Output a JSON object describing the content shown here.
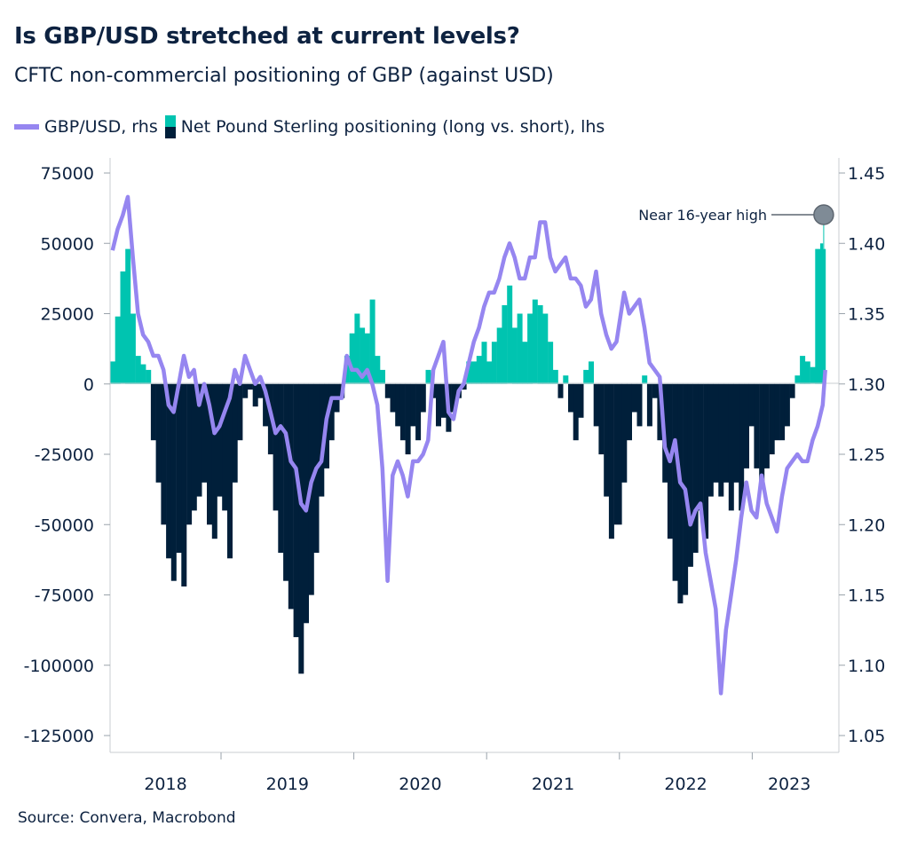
{
  "header": {
    "title": "Is GBP/USD stretched at current levels?",
    "subtitle": "CFTC non-commercial positioning of GBP (against USD)"
  },
  "legend": {
    "line_label": "GBP/USD, rhs",
    "bar_label": "Net Pound Sterling positioning (long vs. short), lhs"
  },
  "source": "Source: Convera, Macrobond",
  "colors": {
    "text": "#0d2240",
    "positive_bar": "#00c4b0",
    "negative_bar": "#001f3a",
    "line": "#9686f0",
    "annotation_marker": "#7f8b96"
  },
  "chart_data": {
    "type": "bar+line",
    "legend_position": "top-left",
    "grid": false,
    "annotation": {
      "text": "Near 16-year high",
      "date": "2023-07-14"
    },
    "x_ticks": [
      "2018",
      "2019",
      "2020",
      "2021",
      "2022",
      "2023"
    ],
    "y_left": {
      "ylim": [
        -125000,
        75000
      ],
      "ticks": [
        "75000",
        "50000",
        "25000",
        "0",
        "-25000",
        "-50000",
        "-75000",
        "-100000",
        "-125000"
      ]
    },
    "y_right": {
      "ylim": [
        1.05,
        1.45
      ],
      "ticks": [
        "1.45",
        "1.40",
        "1.35",
        "1.30",
        "1.25",
        "1.20",
        "1.15",
        "1.10",
        "1.05"
      ]
    },
    "dates": [
      "2018-03-02",
      "2018-03-16",
      "2018-03-30",
      "2018-04-13",
      "2018-04-27",
      "2018-05-11",
      "2018-05-25",
      "2018-06-08",
      "2018-06-22",
      "2018-07-06",
      "2018-07-20",
      "2018-08-03",
      "2018-08-17",
      "2018-08-31",
      "2018-09-14",
      "2018-09-28",
      "2018-10-12",
      "2018-10-26",
      "2018-11-09",
      "2018-11-23",
      "2018-12-07",
      "2018-12-21",
      "2019-01-04",
      "2019-01-18",
      "2019-02-01",
      "2019-02-15",
      "2019-03-01",
      "2019-03-15",
      "2019-03-29",
      "2019-04-12",
      "2019-04-26",
      "2019-05-10",
      "2019-05-24",
      "2019-06-07",
      "2019-06-21",
      "2019-07-05",
      "2019-07-19",
      "2019-08-02",
      "2019-08-16",
      "2019-08-30",
      "2019-09-13",
      "2019-09-27",
      "2019-10-11",
      "2019-10-25",
      "2019-11-08",
      "2019-11-22",
      "2019-12-06",
      "2019-12-20",
      "2020-01-03",
      "2020-01-17",
      "2020-01-31",
      "2020-02-14",
      "2020-02-28",
      "2020-03-13",
      "2020-03-27",
      "2020-04-10",
      "2020-04-24",
      "2020-05-08",
      "2020-05-22",
      "2020-06-05",
      "2020-06-19",
      "2020-07-03",
      "2020-07-17",
      "2020-07-31",
      "2020-08-14",
      "2020-08-28",
      "2020-09-11",
      "2020-09-25",
      "2020-10-09",
      "2020-10-23",
      "2020-11-06",
      "2020-11-20",
      "2020-12-04",
      "2020-12-18",
      "2021-01-01",
      "2021-01-15",
      "2021-01-29",
      "2021-02-12",
      "2021-02-26",
      "2021-03-12",
      "2021-03-26",
      "2021-04-09",
      "2021-04-23",
      "2021-05-07",
      "2021-05-21",
      "2021-06-04",
      "2021-06-18",
      "2021-07-02",
      "2021-07-16",
      "2021-07-30",
      "2021-08-13",
      "2021-08-27",
      "2021-09-10",
      "2021-09-24",
      "2021-10-08",
      "2021-10-22",
      "2021-11-05",
      "2021-11-19",
      "2021-12-03",
      "2021-12-17",
      "2022-01-07",
      "2022-01-21",
      "2022-02-04",
      "2022-02-18",
      "2022-03-04",
      "2022-03-18",
      "2022-04-01",
      "2022-04-15",
      "2022-04-29",
      "2022-05-13",
      "2022-05-27",
      "2022-06-10",
      "2022-06-24",
      "2022-07-08",
      "2022-07-22",
      "2022-08-05",
      "2022-08-19",
      "2022-09-02",
      "2022-09-16",
      "2022-09-30",
      "2022-10-14",
      "2022-10-28",
      "2022-11-11",
      "2022-11-25",
      "2022-12-09",
      "2022-12-23",
      "2023-01-06",
      "2023-01-20",
      "2023-02-03",
      "2023-02-17",
      "2023-03-03",
      "2023-03-17",
      "2023-03-31",
      "2023-04-14",
      "2023-04-28",
      "2023-05-12",
      "2023-05-26",
      "2023-06-09",
      "2023-06-23",
      "2023-07-07",
      "2023-07-14"
    ],
    "series": [
      {
        "name": "Net Pound Sterling positioning (long vs. short), lhs",
        "type": "bar",
        "axis": "left",
        "values": [
          8000,
          24000,
          40000,
          48000,
          25000,
          10000,
          7000,
          5000,
          -20000,
          -35000,
          -50000,
          -62000,
          -70000,
          -60000,
          -72000,
          -50000,
          -45000,
          -40000,
          -35000,
          -50000,
          -55000,
          -40000,
          -45000,
          -62000,
          -35000,
          -20000,
          -5000,
          -2000,
          -8000,
          -5000,
          -15000,
          -25000,
          -45000,
          -60000,
          -70000,
          -80000,
          -90000,
          -103000,
          -85000,
          -75000,
          -60000,
          -40000,
          -30000,
          -20000,
          -10000,
          -5000,
          10000,
          18000,
          25000,
          20000,
          18000,
          30000,
          10000,
          5000,
          -5000,
          -10000,
          -15000,
          -20000,
          -25000,
          -15000,
          -20000,
          -10000,
          5000,
          -5000,
          -15000,
          -12000,
          -17000,
          -10000,
          -5000,
          -2000,
          8000,
          8000,
          10000,
          15000,
          8000,
          15000,
          20000,
          28000,
          35000,
          20000,
          25000,
          15000,
          25000,
          30000,
          28000,
          25000,
          15000,
          5000,
          -5000,
          3000,
          -10000,
          -20000,
          -12000,
          5000,
          8000,
          -15000,
          -25000,
          -40000,
          -55000,
          -50000,
          -35000,
          -20000,
          -10000,
          -15000,
          3000,
          -15000,
          -5000,
          -20000,
          -35000,
          -55000,
          -70000,
          -78000,
          -75000,
          -65000,
          -60000,
          -45000,
          -55000,
          -40000,
          -35000,
          -40000,
          -35000,
          -45000,
          -35000,
          -45000,
          -30000,
          -15000,
          -30000,
          -35000,
          -30000,
          -25000,
          -20000,
          -20000,
          -15000,
          -5000,
          3000,
          10000,
          8000,
          6000,
          48000,
          50000,
          48000
        ]
      },
      {
        "name": "GBP/USD, rhs",
        "type": "line",
        "axis": "right",
        "values": [
          1.395,
          1.41,
          1.42,
          1.433,
          1.39,
          1.35,
          1.335,
          1.33,
          1.32,
          1.32,
          1.31,
          1.285,
          1.28,
          1.3,
          1.32,
          1.305,
          1.31,
          1.285,
          1.3,
          1.285,
          1.265,
          1.27,
          1.28,
          1.29,
          1.31,
          1.3,
          1.32,
          1.31,
          1.3,
          1.305,
          1.295,
          1.28,
          1.265,
          1.27,
          1.265,
          1.245,
          1.24,
          1.215,
          1.21,
          1.23,
          1.24,
          1.245,
          1.275,
          1.29,
          1.29,
          1.29,
          1.32,
          1.31,
          1.31,
          1.305,
          1.31,
          1.3,
          1.285,
          1.24,
          1.16,
          1.235,
          1.245,
          1.235,
          1.22,
          1.245,
          1.245,
          1.25,
          1.26,
          1.31,
          1.32,
          1.33,
          1.28,
          1.275,
          1.295,
          1.3,
          1.315,
          1.33,
          1.34,
          1.355,
          1.365,
          1.365,
          1.375,
          1.39,
          1.4,
          1.39,
          1.375,
          1.375,
          1.39,
          1.39,
          1.415,
          1.415,
          1.39,
          1.38,
          1.385,
          1.39,
          1.375,
          1.375,
          1.37,
          1.355,
          1.36,
          1.38,
          1.35,
          1.335,
          1.325,
          1.33,
          1.365,
          1.35,
          1.355,
          1.36,
          1.34,
          1.315,
          1.31,
          1.305,
          1.255,
          1.245,
          1.26,
          1.23,
          1.225,
          1.2,
          1.21,
          1.215,
          1.18,
          1.16,
          1.14,
          1.08,
          1.125,
          1.15,
          1.175,
          1.205,
          1.23,
          1.21,
          1.205,
          1.235,
          1.215,
          1.205,
          1.195,
          1.22,
          1.24,
          1.245,
          1.25,
          1.245,
          1.245,
          1.26,
          1.27,
          1.285,
          1.31
        ]
      }
    ]
  }
}
